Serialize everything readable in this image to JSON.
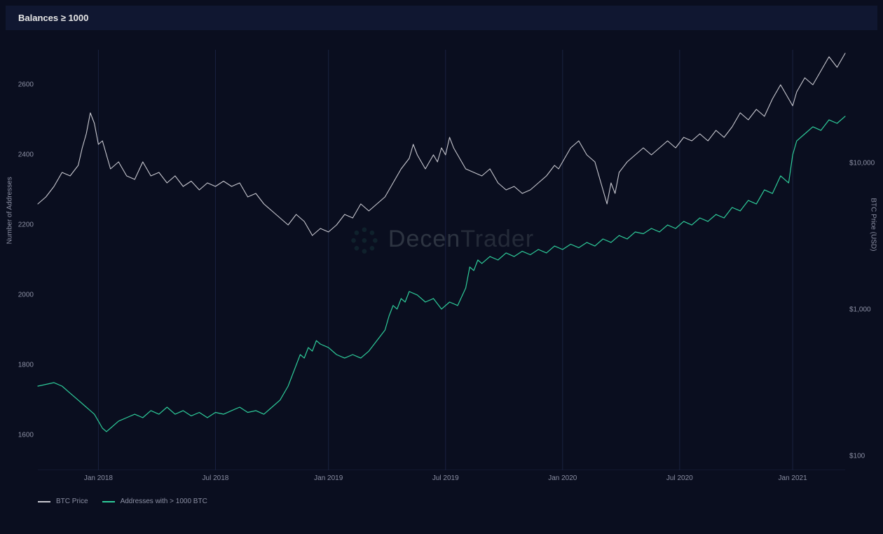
{
  "title": "Balances ≥ 1000",
  "chart": {
    "type": "line-dual-axis",
    "background_color": "#0a0e1f",
    "titlebar_color": "#101731",
    "grid_color": "#1a2240",
    "text_color": "#8b8fa3",
    "label_fontsize": 10,
    "title_fontsize": 13,
    "watermark": {
      "brand_bold": "Decen",
      "brand_light": "Trader",
      "opacity": 0.18
    },
    "x_axis": {
      "ticks": [
        {
          "pos": 0.075,
          "label": "Jan 2018"
        },
        {
          "pos": 0.22,
          "label": "Jul 2018"
        },
        {
          "pos": 0.36,
          "label": "Jan 2019"
        },
        {
          "pos": 0.505,
          "label": "Jul 2019"
        },
        {
          "pos": 0.65,
          "label": "Jan 2020"
        },
        {
          "pos": 0.795,
          "label": "Jul 2020"
        },
        {
          "pos": 0.935,
          "label": "Jan 2021"
        }
      ]
    },
    "y_left": {
      "label": "Number of Addresses",
      "scale": "linear",
      "min": 1500,
      "max": 2700,
      "ticks": [
        {
          "value": 1600,
          "label": "1600"
        },
        {
          "value": 1800,
          "label": "1800"
        },
        {
          "value": 2000,
          "label": "2000"
        },
        {
          "value": 2200,
          "label": "2200"
        },
        {
          "value": 2400,
          "label": "2400"
        },
        {
          "value": 2600,
          "label": "2600"
        }
      ]
    },
    "y_right": {
      "label": "BTC Price (USD)",
      "scale": "log",
      "min": 80,
      "max": 60000,
      "ticks": [
        {
          "value": 100,
          "label": "$100"
        },
        {
          "value": 1000,
          "label": "$1,000"
        },
        {
          "value": 10000,
          "label": "$10,000"
        }
      ]
    },
    "series": [
      {
        "name": "BTC Price",
        "axis": "right",
        "color": "#c8c8d0",
        "stroke_width": 1.1,
        "points": [
          [
            0.0,
            2260
          ],
          [
            0.01,
            2280
          ],
          [
            0.02,
            2310
          ],
          [
            0.03,
            2350
          ],
          [
            0.04,
            2340
          ],
          [
            0.05,
            2370
          ],
          [
            0.055,
            2420
          ],
          [
            0.06,
            2460
          ],
          [
            0.065,
            2520
          ],
          [
            0.07,
            2490
          ],
          [
            0.075,
            2430
          ],
          [
            0.08,
            2440
          ],
          [
            0.09,
            2360
          ],
          [
            0.1,
            2380
          ],
          [
            0.11,
            2340
          ],
          [
            0.12,
            2330
          ],
          [
            0.13,
            2380
          ],
          [
            0.14,
            2340
          ],
          [
            0.15,
            2350
          ],
          [
            0.16,
            2320
          ],
          [
            0.17,
            2340
          ],
          [
            0.18,
            2310
          ],
          [
            0.19,
            2325
          ],
          [
            0.2,
            2300
          ],
          [
            0.21,
            2320
          ],
          [
            0.22,
            2310
          ],
          [
            0.23,
            2325
          ],
          [
            0.24,
            2310
          ],
          [
            0.25,
            2320
          ],
          [
            0.26,
            2280
          ],
          [
            0.27,
            2290
          ],
          [
            0.28,
            2260
          ],
          [
            0.29,
            2240
          ],
          [
            0.3,
            2220
          ],
          [
            0.31,
            2200
          ],
          [
            0.32,
            2230
          ],
          [
            0.33,
            2210
          ],
          [
            0.34,
            2170
          ],
          [
            0.35,
            2190
          ],
          [
            0.36,
            2180
          ],
          [
            0.37,
            2200
          ],
          [
            0.38,
            2230
          ],
          [
            0.39,
            2220
          ],
          [
            0.4,
            2260
          ],
          [
            0.41,
            2240
          ],
          [
            0.42,
            2260
          ],
          [
            0.43,
            2280
          ],
          [
            0.44,
            2320
          ],
          [
            0.45,
            2360
          ],
          [
            0.46,
            2390
          ],
          [
            0.465,
            2430
          ],
          [
            0.47,
            2400
          ],
          [
            0.48,
            2360
          ],
          [
            0.49,
            2400
          ],
          [
            0.495,
            2380
          ],
          [
            0.5,
            2420
          ],
          [
            0.505,
            2400
          ],
          [
            0.51,
            2450
          ],
          [
            0.515,
            2420
          ],
          [
            0.52,
            2400
          ],
          [
            0.53,
            2360
          ],
          [
            0.54,
            2350
          ],
          [
            0.55,
            2340
          ],
          [
            0.56,
            2360
          ],
          [
            0.57,
            2320
          ],
          [
            0.58,
            2300
          ],
          [
            0.59,
            2310
          ],
          [
            0.6,
            2290
          ],
          [
            0.61,
            2300
          ],
          [
            0.62,
            2320
          ],
          [
            0.63,
            2340
          ],
          [
            0.64,
            2370
          ],
          [
            0.645,
            2360
          ],
          [
            0.65,
            2380
          ],
          [
            0.66,
            2420
          ],
          [
            0.67,
            2440
          ],
          [
            0.68,
            2400
          ],
          [
            0.69,
            2380
          ],
          [
            0.7,
            2300
          ],
          [
            0.705,
            2260
          ],
          [
            0.71,
            2320
          ],
          [
            0.715,
            2290
          ],
          [
            0.72,
            2350
          ],
          [
            0.73,
            2380
          ],
          [
            0.74,
            2400
          ],
          [
            0.75,
            2420
          ],
          [
            0.76,
            2400
          ],
          [
            0.77,
            2420
          ],
          [
            0.78,
            2440
          ],
          [
            0.79,
            2420
          ],
          [
            0.8,
            2450
          ],
          [
            0.81,
            2440
          ],
          [
            0.82,
            2460
          ],
          [
            0.83,
            2440
          ],
          [
            0.84,
            2470
          ],
          [
            0.85,
            2450
          ],
          [
            0.86,
            2480
          ],
          [
            0.87,
            2520
          ],
          [
            0.88,
            2500
          ],
          [
            0.89,
            2530
          ],
          [
            0.9,
            2510
          ],
          [
            0.91,
            2560
          ],
          [
            0.92,
            2600
          ],
          [
            0.93,
            2560
          ],
          [
            0.935,
            2540
          ],
          [
            0.94,
            2580
          ],
          [
            0.95,
            2620
          ],
          [
            0.96,
            2600
          ],
          [
            0.97,
            2640
          ],
          [
            0.98,
            2680
          ],
          [
            0.99,
            2650
          ],
          [
            1.0,
            2690
          ]
        ]
      },
      {
        "name": "Addresses with > 1000 BTC",
        "axis": "left",
        "color": "#2ecc9a",
        "stroke_width": 1.2,
        "points": [
          [
            0.0,
            1740
          ],
          [
            0.01,
            1745
          ],
          [
            0.02,
            1750
          ],
          [
            0.03,
            1740
          ],
          [
            0.04,
            1720
          ],
          [
            0.05,
            1700
          ],
          [
            0.06,
            1680
          ],
          [
            0.07,
            1660
          ],
          [
            0.075,
            1640
          ],
          [
            0.08,
            1620
          ],
          [
            0.085,
            1610
          ],
          [
            0.09,
            1620
          ],
          [
            0.1,
            1640
          ],
          [
            0.11,
            1650
          ],
          [
            0.12,
            1660
          ],
          [
            0.13,
            1650
          ],
          [
            0.14,
            1670
          ],
          [
            0.15,
            1660
          ],
          [
            0.16,
            1680
          ],
          [
            0.17,
            1660
          ],
          [
            0.18,
            1670
          ],
          [
            0.19,
            1655
          ],
          [
            0.2,
            1665
          ],
          [
            0.21,
            1650
          ],
          [
            0.22,
            1665
          ],
          [
            0.23,
            1660
          ],
          [
            0.24,
            1670
          ],
          [
            0.25,
            1680
          ],
          [
            0.26,
            1665
          ],
          [
            0.27,
            1670
          ],
          [
            0.28,
            1660
          ],
          [
            0.29,
            1680
          ],
          [
            0.3,
            1700
          ],
          [
            0.31,
            1740
          ],
          [
            0.315,
            1770
          ],
          [
            0.32,
            1800
          ],
          [
            0.325,
            1830
          ],
          [
            0.33,
            1820
          ],
          [
            0.335,
            1850
          ],
          [
            0.34,
            1840
          ],
          [
            0.345,
            1870
          ],
          [
            0.35,
            1860
          ],
          [
            0.36,
            1850
          ],
          [
            0.37,
            1830
          ],
          [
            0.38,
            1820
          ],
          [
            0.39,
            1830
          ],
          [
            0.4,
            1820
          ],
          [
            0.41,
            1840
          ],
          [
            0.42,
            1870
          ],
          [
            0.43,
            1900
          ],
          [
            0.435,
            1940
          ],
          [
            0.44,
            1970
          ],
          [
            0.445,
            1960
          ],
          [
            0.45,
            1990
          ],
          [
            0.455,
            1980
          ],
          [
            0.46,
            2010
          ],
          [
            0.47,
            2000
          ],
          [
            0.48,
            1980
          ],
          [
            0.49,
            1990
          ],
          [
            0.5,
            1960
          ],
          [
            0.51,
            1980
          ],
          [
            0.52,
            1970
          ],
          [
            0.53,
            2020
          ],
          [
            0.535,
            2080
          ],
          [
            0.54,
            2070
          ],
          [
            0.545,
            2100
          ],
          [
            0.55,
            2090
          ],
          [
            0.56,
            2110
          ],
          [
            0.57,
            2100
          ],
          [
            0.58,
            2120
          ],
          [
            0.59,
            2110
          ],
          [
            0.6,
            2125
          ],
          [
            0.61,
            2115
          ],
          [
            0.62,
            2130
          ],
          [
            0.63,
            2120
          ],
          [
            0.64,
            2140
          ],
          [
            0.65,
            2130
          ],
          [
            0.66,
            2145
          ],
          [
            0.67,
            2135
          ],
          [
            0.68,
            2150
          ],
          [
            0.69,
            2140
          ],
          [
            0.7,
            2160
          ],
          [
            0.71,
            2150
          ],
          [
            0.72,
            2170
          ],
          [
            0.73,
            2160
          ],
          [
            0.74,
            2180
          ],
          [
            0.75,
            2175
          ],
          [
            0.76,
            2190
          ],
          [
            0.77,
            2180
          ],
          [
            0.78,
            2200
          ],
          [
            0.79,
            2190
          ],
          [
            0.8,
            2210
          ],
          [
            0.81,
            2200
          ],
          [
            0.82,
            2220
          ],
          [
            0.83,
            2210
          ],
          [
            0.84,
            2230
          ],
          [
            0.85,
            2220
          ],
          [
            0.86,
            2250
          ],
          [
            0.87,
            2240
          ],
          [
            0.88,
            2270
          ],
          [
            0.89,
            2260
          ],
          [
            0.9,
            2300
          ],
          [
            0.91,
            2290
          ],
          [
            0.92,
            2340
          ],
          [
            0.93,
            2320
          ],
          [
            0.935,
            2400
          ],
          [
            0.94,
            2440
          ],
          [
            0.95,
            2460
          ],
          [
            0.96,
            2480
          ],
          [
            0.97,
            2470
          ],
          [
            0.98,
            2500
          ],
          [
            0.99,
            2490
          ],
          [
            1.0,
            2510
          ]
        ]
      }
    ],
    "legend": [
      {
        "label": "BTC Price",
        "color": "#c8c8d0"
      },
      {
        "label": "Addresses with > 1000 BTC",
        "color": "#2ecc9a"
      }
    ]
  }
}
